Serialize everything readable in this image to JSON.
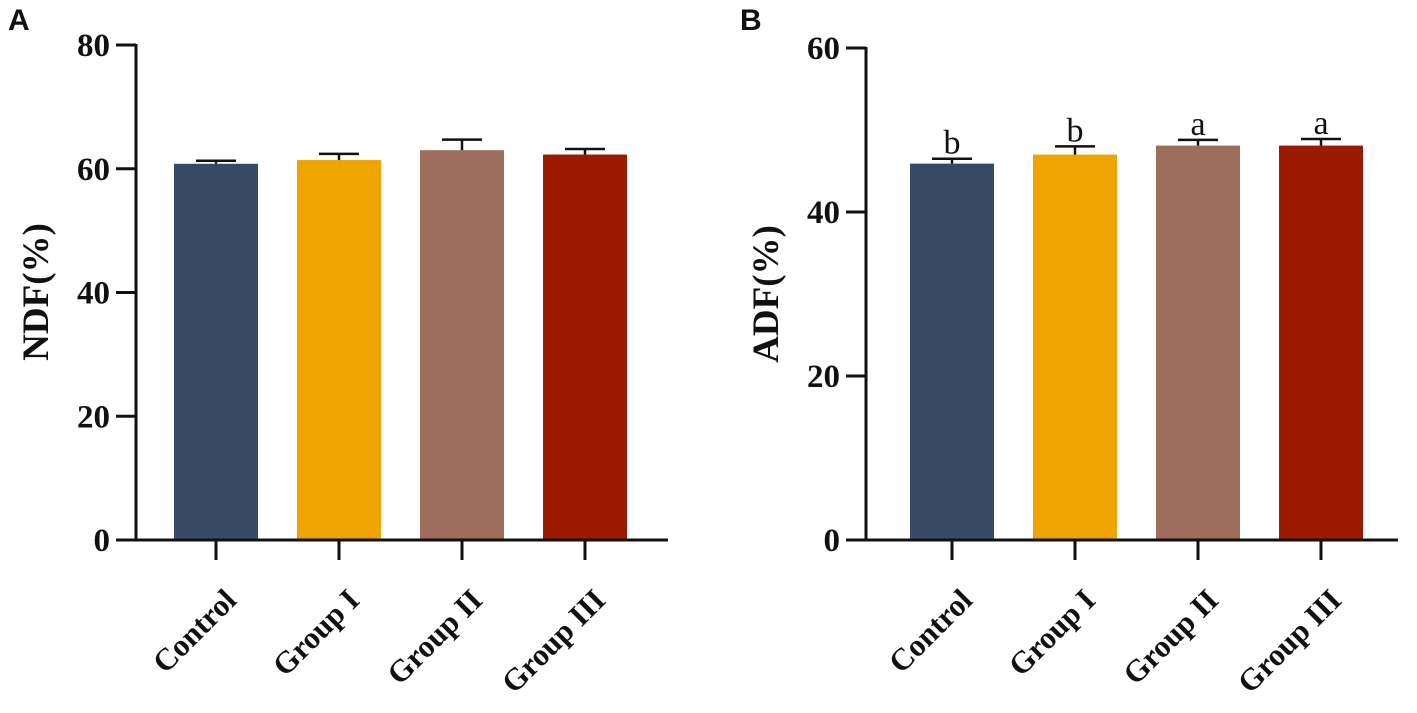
{
  "chart_data": [
    {
      "type": "bar",
      "panel": "A",
      "title": "",
      "xlabel": "",
      "ylabel": "NDF(%)",
      "ylim": [
        0,
        80
      ],
      "yticks": [
        0,
        20,
        40,
        60,
        80
      ],
      "categories": [
        "Control",
        "Group I",
        "Group II",
        "Group III"
      ],
      "values": [
        60.8,
        61.4,
        63.0,
        62.3
      ],
      "errors": [
        0.5,
        1.0,
        1.7,
        0.9
      ],
      "significance": [
        "",
        "",
        "",
        ""
      ],
      "colors": [
        "#364a66",
        "#eea500",
        "#9e6e5c",
        "#9b1b00"
      ],
      "grid": false
    },
    {
      "type": "bar",
      "panel": "B",
      "title": "",
      "xlabel": "",
      "ylabel": "ADF(%)",
      "ylim": [
        0,
        60
      ],
      "yticks": [
        0,
        20,
        40,
        60
      ],
      "categories": [
        "Control",
        "Group I",
        "Group II",
        "Group III"
      ],
      "values": [
        45.9,
        47.0,
        48.1,
        48.1
      ],
      "errors": [
        0.6,
        1.0,
        0.7,
        0.8
      ],
      "significance": [
        "b",
        "b",
        "a",
        "a"
      ],
      "colors": [
        "#364a66",
        "#eea500",
        "#9e6e5c",
        "#9b1b00"
      ],
      "grid": false
    }
  ]
}
